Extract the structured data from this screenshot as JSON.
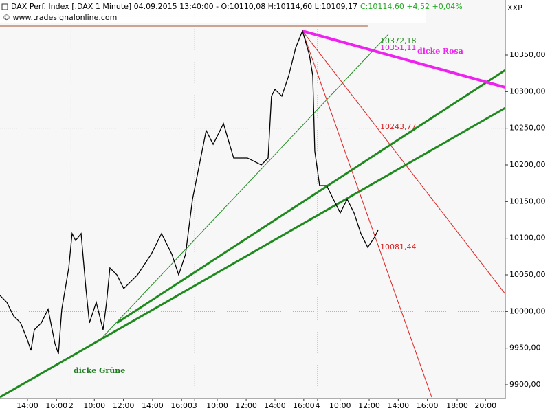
{
  "chart_data": {
    "type": "line",
    "title": "DAX Perf. Index [.DAX  1 Minute] 04.09.2015 13:40:00 - O:10110,08 H:10114,60 L:10109,17",
    "subtitle": "C:10114,60 +4,52 +0,04%",
    "subtitle_color": "#22aa22",
    "source": "© www.tradesignalonline.com",
    "axis_corner_label": "XXP",
    "x": [
      -1.89,
      -1.42,
      -0.95,
      -0.47,
      0,
      0.24,
      0.47,
      0.95,
      1.42,
      1.89,
      2.13,
      2.36,
      2.84,
      3.07,
      3.31,
      3.69,
      4.02,
      4.26,
      4.73,
      5.2,
      5.44,
      5.67,
      6.15,
      6.62,
      7.57,
      8.51,
      9.22,
      9.93,
      10.4,
      10.87,
      11.35,
      11.82,
      12.29,
      12.77,
      13.48,
      14.18,
      15.13,
      16.08,
      16.55,
      16.78,
      17.02,
      17.49,
      17.97,
      18.44,
      18.91,
      19.39,
      19.62,
      19.76,
      20.09,
      20.57,
      21.04,
      21.51,
      21.99,
      22.46,
      22.93,
      23.4,
      23.88,
      24.11
    ],
    "series": [
      {
        "name": "DAX",
        "color": "#000000",
        "values": [
          10021.9,
          10012.5,
          9993.8,
          9984.4,
          9960.9,
          9946.9,
          9975,
          9984.4,
          10003.1,
          9956.3,
          9942.2,
          10003.1,
          10059.4,
          10106.3,
          10096.9,
          10106.3,
          10031.3,
          9984.4,
          10012.5,
          9975,
          10012.5,
          10059.4,
          10050,
          10031.3,
          10050,
          10078.1,
          10106.3,
          10078.1,
          10050,
          10078.1,
          10153.1,
          10200,
          10246.9,
          10228.1,
          10256.3,
          10209.4,
          10209.4,
          10200,
          10209.4,
          10293.8,
          10303.1,
          10293.8,
          10321.9,
          10359.4,
          10382.8,
          10350,
          10321.9,
          10218.8,
          10171.9,
          10171.9,
          10153.1,
          10134.4,
          10153.1,
          10134.4,
          10106.3,
          10087.5,
          10101.6,
          10110.9
        ]
      }
    ],
    "xlim": [
      -1.89,
      32.86
    ],
    "ylim": [
      9881.25,
      10425
    ],
    "xticks": [
      {
        "value": 0,
        "label": "14:00"
      },
      {
        "value": 2,
        "label": "16:00"
      },
      {
        "value": 3,
        "label": "2"
      },
      {
        "value": 4.6,
        "label": "10:00"
      },
      {
        "value": 6.6,
        "label": "12:00"
      },
      {
        "value": 8.6,
        "label": "14:00"
      },
      {
        "value": 10.6,
        "label": "16:00"
      },
      {
        "value": 11.5,
        "label": "3"
      },
      {
        "value": 13.05,
        "label": "10:00"
      },
      {
        "value": 15.04,
        "label": "12:00"
      },
      {
        "value": 17.02,
        "label": "14:00"
      },
      {
        "value": 19,
        "label": "16:00"
      },
      {
        "value": 19.95,
        "label": "4"
      },
      {
        "value": 21.5,
        "label": "10:00"
      },
      {
        "value": 23.5,
        "label": "12:00"
      },
      {
        "value": 25.5,
        "label": "14:00"
      },
      {
        "value": 27.5,
        "label": "16:00"
      },
      {
        "value": 29.55,
        "label": "18:00"
      },
      {
        "value": 31.5,
        "label": "20:00"
      }
    ],
    "yticks": [
      {
        "value": 9900,
        "label": "9900,00"
      },
      {
        "value": 9950,
        "label": "9950,00"
      },
      {
        "value": 10000,
        "label": "10000,00"
      },
      {
        "value": 10050,
        "label": "10050,00"
      },
      {
        "value": 10100,
        "label": "10100,00"
      },
      {
        "value": 10150,
        "label": "10150,00"
      },
      {
        "value": 10200,
        "label": "10200,00"
      },
      {
        "value": 10250,
        "label": "10250,00"
      },
      {
        "value": 10300,
        "label": "10300,00"
      },
      {
        "value": 10350,
        "label": "10350,00"
      }
    ],
    "xgrid": [
      3,
      11.5,
      19.95
    ],
    "ygrid": [
      10000,
      10250
    ],
    "trendlines": [
      {
        "x": [
          -1.89,
          23.4
        ],
        "y": [
          10389.4,
          10389.4
        ],
        "color": "#a0522d",
        "width": 1
      },
      {
        "x": [
          5.2,
          24.82
        ],
        "y": [
          9965.6,
          10378.1
        ],
        "color": "#228b22",
        "width": 1
      },
      {
        "x": [
          6.15,
          32.86
        ],
        "y": [
          9984.4,
          10329.4
        ],
        "color": "#1e8a1e",
        "width": 3
      },
      {
        "x": [
          -1.89,
          32.86
        ],
        "y": [
          9883.1,
          10277.8
        ],
        "color": "#1e8a1e",
        "width": 3
      },
      {
        "x": [
          18.91,
          27.8
        ],
        "y": [
          10382.8,
          9883.1
        ],
        "color": "#dd2222",
        "width": 1
      },
      {
        "x": [
          18.91,
          32.86
        ],
        "y": [
          10382.8,
          10023.8
        ],
        "color": "#dd2222",
        "width": 1
      },
      {
        "x": [
          18.91,
          32.86
        ],
        "y": [
          10382.8,
          10305.9
        ],
        "color": "#ee22ee",
        "width": 4
      }
    ],
    "annotations": [
      {
        "text": "10372,18",
        "color": "#228b22"
      },
      {
        "text": "10351,11",
        "color": "#dd22dd"
      },
      {
        "text": "dicke Rosa",
        "color": "#ee22ee"
      },
      {
        "text": "10243,77",
        "color": "#dd2222"
      },
      {
        "text": "10081,44",
        "color": "#dd2222"
      },
      {
        "text": "dicke Grüne",
        "color": "#1e7a1e"
      }
    ]
  }
}
